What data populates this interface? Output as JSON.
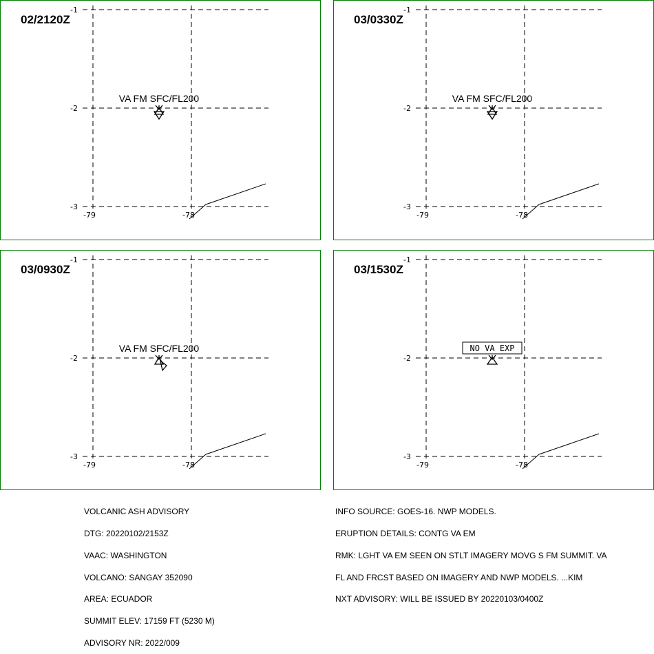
{
  "panels": [
    {
      "time": "02/2120Z",
      "label": "VA FM SFC/FL200",
      "label_boxed": false,
      "second_marker": "down"
    },
    {
      "time": "03/0330Z",
      "label": "VA FM SFC/FL200",
      "label_boxed": false,
      "second_marker": "down"
    },
    {
      "time": "03/0930Z",
      "label": "VA FM SFC/FL200",
      "label_boxed": false,
      "second_marker": "right"
    },
    {
      "time": "03/1530Z",
      "label": "NO VA EXP",
      "label_boxed": true,
      "second_marker": "none"
    }
  ],
  "grid": {
    "lat_labels": [
      "-1",
      "-2",
      "-3"
    ],
    "lon_labels": [
      "-79",
      "-78"
    ]
  },
  "advisory_left": [
    "VOLCANIC ASH ADVISORY",
    "DTG: 20220102/2153Z",
    "VAAC: WASHINGTON",
    "VOLCANO: SANGAY 352090",
    "AREA: ECUADOR",
    "SUMMIT ELEV: 17159 FT (5230 M)",
    "ADVISORY NR: 2022/009"
  ],
  "advisory_right": [
    "INFO SOURCE: GOES-16. NWP MODELS.",
    "ERUPTION DETAILS: CONTG VA EM",
    "RMK: LGHT VA EM SEEN ON STLT IMAGERY MOVG S FM SUMMIT. VA",
    "FL AND FRCST BASED ON IMAGERY AND NWP MODELS. ...KIM",
    "NXT ADVISORY: WILL BE ISSUED BY 20220103/0400Z"
  ],
  "colors": {
    "frame": "#008000",
    "ink": "#000000"
  }
}
